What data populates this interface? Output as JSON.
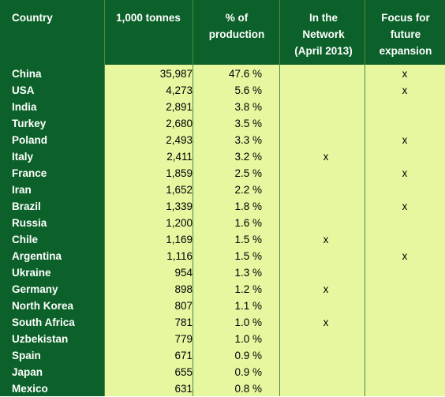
{
  "headers": {
    "country": "Country",
    "tonnes": "1,000 tonnes",
    "pct": [
      "% of",
      "production"
    ],
    "network": [
      "In the",
      "Network",
      "(April 2013)"
    ],
    "focus": [
      "Focus for",
      "future",
      "expansion"
    ]
  },
  "rows": [
    {
      "country": "China",
      "tonnes": "35,987",
      "pct": "47.6 %",
      "network": "",
      "focus": "x"
    },
    {
      "country": "USA",
      "tonnes": "4,273",
      "pct": "5.6 %",
      "network": "",
      "focus": "x"
    },
    {
      "country": "India",
      "tonnes": "2,891",
      "pct": "3.8 %",
      "network": "",
      "focus": ""
    },
    {
      "country": "Turkey",
      "tonnes": "2,680",
      "pct": "3.5 %",
      "network": "",
      "focus": ""
    },
    {
      "country": "Poland",
      "tonnes": "2,493",
      "pct": "3.3 %",
      "network": "",
      "focus": "x"
    },
    {
      "country": "Italy",
      "tonnes": "2,411",
      "pct": "3.2 %",
      "network": "x",
      "focus": ""
    },
    {
      "country": "France",
      "tonnes": "1,859",
      "pct": "2.5 %",
      "network": "",
      "focus": "x"
    },
    {
      "country": "Iran",
      "tonnes": "1,652",
      "pct": "2.2 %",
      "network": "",
      "focus": ""
    },
    {
      "country": "Brazil",
      "tonnes": "1,339",
      "pct": "1.8 %",
      "network": "",
      "focus": "x"
    },
    {
      "country": "Russia",
      "tonnes": "1,200",
      "pct": "1.6 %",
      "network": "",
      "focus": ""
    },
    {
      "country": "Chile",
      "tonnes": "1,169",
      "pct": "1.5 %",
      "network": "x",
      "focus": ""
    },
    {
      "country": "Argentina",
      "tonnes": "1,116",
      "pct": "1.5 %",
      "network": "",
      "focus": "x"
    },
    {
      "country": "Ukraine",
      "tonnes": "954",
      "pct": "1.3 %",
      "network": "",
      "focus": ""
    },
    {
      "country": "Germany",
      "tonnes": "898",
      "pct": "1.2 %",
      "network": "x",
      "focus": ""
    },
    {
      "country": "North Korea",
      "tonnes": "807",
      "pct": "1.1 %",
      "network": "",
      "focus": ""
    },
    {
      "country": "South Africa",
      "tonnes": "781",
      "pct": "1.0 %",
      "network": "x",
      "focus": ""
    },
    {
      "country": "Uzbekistan",
      "tonnes": "779",
      "pct": "1.0 %",
      "network": "",
      "focus": ""
    },
    {
      "country": "Spain",
      "tonnes": "671",
      "pct": "0.9 %",
      "network": "",
      "focus": ""
    },
    {
      "country": "Japan",
      "tonnes": "655",
      "pct": "0.9 %",
      "network": "",
      "focus": ""
    },
    {
      "country": "Mexico",
      "tonnes": "631",
      "pct": "0.8 %",
      "network": "",
      "focus": ""
    }
  ],
  "colors": {
    "header_green": "#0b6129",
    "body_lime": "#e6f7a0",
    "grid": "#4f8a43"
  }
}
